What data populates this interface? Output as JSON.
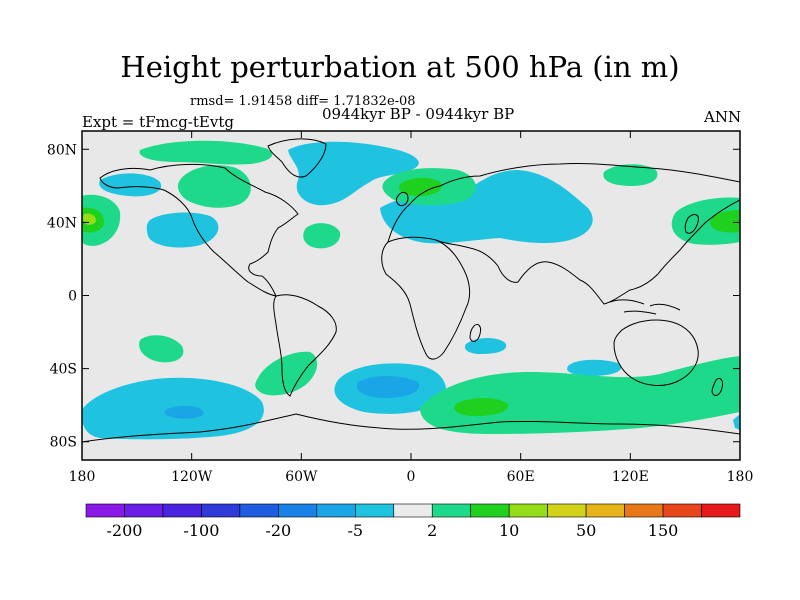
{
  "title": "Height perturbation at 500 hPa (in m)",
  "stats": "rmsd= 1.91458 diff= 1.71832e-08",
  "experiment": "Expt = tFmcg-tEvtg",
  "period": "0944kyr BP - 0944kyr BP",
  "season": "ANN",
  "map": {
    "projection": "cylindrical-equidistant",
    "lon_range": [
      -180,
      180
    ],
    "lat_range": [
      -90,
      90
    ],
    "background_color": "#e8e8e8",
    "coastline_color": "#000000"
  },
  "lat_ticks": [
    {
      "value": 80,
      "label": "80N"
    },
    {
      "value": 40,
      "label": "40N"
    },
    {
      "value": 0,
      "label": "0"
    },
    {
      "value": -40,
      "label": "40S"
    },
    {
      "value": -80,
      "label": "80S"
    }
  ],
  "lon_ticks": [
    {
      "value": -180,
      "label": "180"
    },
    {
      "value": -120,
      "label": "120W"
    },
    {
      "value": -60,
      "label": "60W"
    },
    {
      "value": 0,
      "label": "0"
    },
    {
      "value": 60,
      "label": "60E"
    },
    {
      "value": 120,
      "label": "120E"
    },
    {
      "value": 180,
      "label": "180"
    }
  ],
  "colorbar": {
    "colors": [
      "#8a1ae6",
      "#6a1ee6",
      "#4b24e0",
      "#2f3ad8",
      "#1f5ce0",
      "#1a82e6",
      "#1aa6e6",
      "#1fc3e0",
      "#ebebeb",
      "#1fd98a",
      "#1fd01f",
      "#96dc1a",
      "#d2d21a",
      "#e6b41a",
      "#e6781a",
      "#e6461a",
      "#e61a1a"
    ],
    "labels": [
      {
        "index": 1,
        "text": "-200"
      },
      {
        "index": 3,
        "text": "-100"
      },
      {
        "index": 5,
        "text": "-20"
      },
      {
        "index": 7,
        "text": "-5"
      },
      {
        "index": 9,
        "text": "2"
      },
      {
        "index": 11,
        "text": "10"
      },
      {
        "index": 13,
        "text": "50"
      },
      {
        "index": 15,
        "text": "150"
      }
    ]
  }
}
